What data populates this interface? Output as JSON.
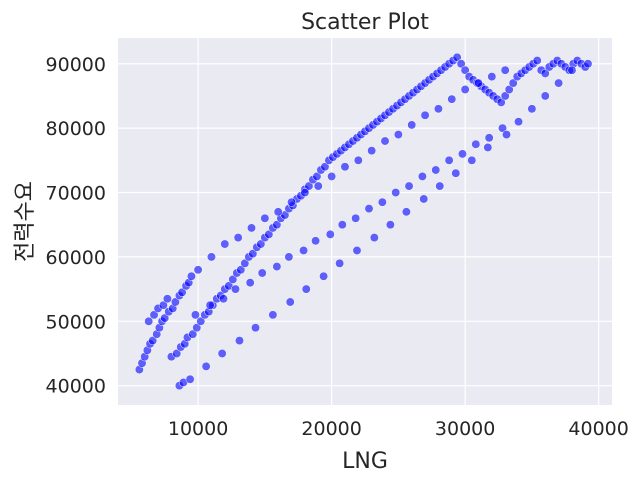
{
  "chart_data": {
    "type": "scatter",
    "title": "Scatter Plot",
    "xlabel": "LNG",
    "ylabel": "전력수요",
    "xlim": [
      4000,
      41000
    ],
    "ylim": [
      37000,
      94000
    ],
    "xticks": [
      10000,
      20000,
      30000,
      40000
    ],
    "xtick_labels": [
      "10000",
      "20000",
      "30000",
      "40000"
    ],
    "yticks": [
      40000,
      50000,
      60000,
      70000,
      80000,
      90000
    ],
    "ytick_labels": [
      "40000",
      "50000",
      "60000",
      "70000",
      "80000",
      "90000"
    ],
    "grid": true,
    "colors": {
      "background": "#eaeaf2",
      "grid": "#ffffff",
      "point": "#0000ff",
      "point_edge": "#ffffff"
    },
    "series": [
      {
        "x": [
          5600,
          5800,
          6000,
          6200,
          6400,
          6600,
          6900,
          7100,
          7300,
          7500,
          7800,
          8100,
          8300,
          8600,
          8800,
          9100,
          9300,
          9500,
          6300,
          6700,
          7000,
          7400,
          7700,
          8000,
          8400,
          8700,
          9000,
          9200,
          9600,
          9900,
          10200,
          10500,
          10800,
          11100,
          11400,
          11700,
          12000,
          12300,
          12600,
          12900,
          13200,
          13500,
          13800,
          14100,
          14400,
          14700,
          15000,
          15300,
          15600,
          15900,
          16200,
          16500,
          16800,
          17100,
          17400,
          17700,
          18000,
          18300,
          18600,
          18900,
          19200,
          19500,
          19800,
          20100,
          20400,
          20700,
          21000,
          21300,
          21600,
          21900,
          22200,
          22500,
          22800,
          23100,
          23400,
          23700,
          24000,
          24300,
          24600,
          24900,
          25200,
          25500,
          25800,
          26100,
          26400,
          26700,
          27000,
          27300,
          27600,
          27900,
          28200,
          28500,
          28800,
          29100,
          29400,
          29700,
          30000,
          30300,
          30600,
          30900,
          31200,
          31500,
          31800,
          32100,
          32400,
          32700,
          33000,
          33300,
          33600,
          33900,
          34200,
          34500,
          34800,
          35100,
          35400,
          35700,
          36000,
          36300,
          36600,
          36900,
          37200,
          37500,
          37800,
          38100,
          38400,
          38700,
          39000,
          39200,
          10000,
          11000,
          12000,
          13000,
          14000,
          15000,
          16000,
          17000,
          18000,
          19000,
          20000,
          21000,
          22000,
          23000,
          24000,
          25000,
          26000,
          27000,
          28000,
          29000,
          30000,
          31000,
          32000,
          33000,
          9800,
          10900,
          11900,
          12800,
          13900,
          14800,
          15900,
          16800,
          17900,
          18800,
          19900,
          20800,
          21800,
          22800,
          23800,
          24800,
          25800,
          26800,
          27800,
          28800,
          29800,
          30800,
          31800,
          32800,
          8600,
          8900,
          9400,
          10600,
          11800,
          13100,
          14300,
          15600,
          16900,
          18100,
          19400,
          20600,
          21900,
          23200,
          24400,
          25600,
          26900,
          28100,
          29300,
          30500,
          31700,
          33100,
          34000,
          35000,
          36000,
          37000,
          38000
        ],
        "y": [
          42500,
          43500,
          44500,
          45500,
          46500,
          47000,
          48000,
          49000,
          50000,
          50500,
          51500,
          52000,
          53000,
          54000,
          54500,
          55500,
          56000,
          57000,
          50000,
          51000,
          52000,
          52500,
          53500,
          44500,
          45000,
          46000,
          46500,
          47500,
          48000,
          49000,
          50000,
          51000,
          51500,
          52500,
          53500,
          54000,
          55000,
          55500,
          56500,
          57500,
          58000,
          59000,
          60000,
          60500,
          61500,
          62000,
          63000,
          63500,
          64500,
          65000,
          66000,
          66500,
          67500,
          68000,
          69000,
          69500,
          70500,
          71000,
          72000,
          72500,
          73500,
          74000,
          75000,
          75500,
          76000,
          76500,
          77000,
          77500,
          78000,
          78500,
          79000,
          79500,
          80000,
          80500,
          81000,
          81500,
          82000,
          82500,
          83000,
          83500,
          84000,
          84500,
          85000,
          85500,
          86000,
          86500,
          87000,
          87500,
          88000,
          88500,
          89000,
          89500,
          90000,
          90500,
          91000,
          90000,
          89000,
          88000,
          87500,
          87000,
          86500,
          86000,
          85500,
          85000,
          84500,
          84000,
          85000,
          86000,
          87000,
          88000,
          88500,
          89000,
          89500,
          90000,
          90500,
          89000,
          88500,
          89500,
          90000,
          90500,
          90000,
          89500,
          89000,
          90000,
          90500,
          90000,
          89500,
          90000,
          58000,
          60000,
          62000,
          63000,
          64500,
          66000,
          67000,
          68500,
          70000,
          71000,
          72500,
          74000,
          75000,
          76500,
          78000,
          79000,
          80500,
          82000,
          83000,
          84500,
          86000,
          87000,
          88000,
          89000,
          51000,
          52500,
          53500,
          55000,
          56000,
          57500,
          58500,
          60000,
          61000,
          62500,
          63500,
          65000,
          66000,
          67500,
          68500,
          70000,
          71000,
          72500,
          73500,
          75000,
          76000,
          77500,
          78500,
          80000,
          40000,
          40500,
          41000,
          43000,
          45000,
          47000,
          49000,
          51000,
          53000,
          55000,
          57000,
          59000,
          61000,
          63000,
          65000,
          67000,
          69000,
          71000,
          73000,
          75000,
          77000,
          79000,
          81000,
          83000,
          85000,
          87000,
          89000
        ]
      }
    ]
  }
}
